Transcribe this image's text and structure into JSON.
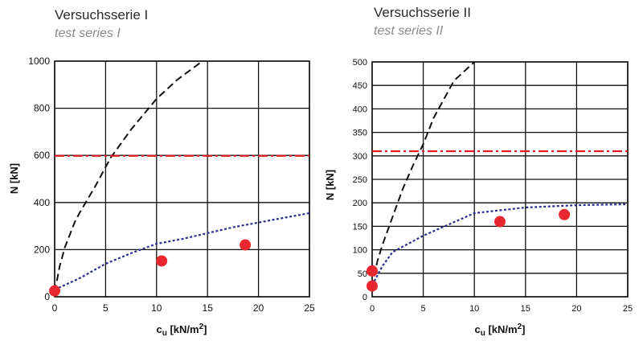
{
  "chart_data": [
    {
      "type": "line",
      "title": "Versuchsserie I",
      "subtitle": "test series I",
      "xlabel": "cu [kN/m2]",
      "ylabel": "N [kN]",
      "xlim": [
        0,
        25
      ],
      "ylim": [
        0,
        1000
      ],
      "xticks": [
        0,
        5,
        10,
        15,
        20,
        25
      ],
      "yticks": [
        0,
        200,
        400,
        600,
        800,
        1000
      ],
      "grid": true,
      "series": [
        {
          "style": "dashed-black",
          "x": [
            0,
            0.5,
            1,
            2,
            2.5,
            4,
            5.5,
            7.5,
            10,
            12,
            14.5
          ],
          "y": [
            20,
            130,
            210,
            320,
            360,
            470,
            590,
            710,
            840,
            920,
            1000
          ]
        },
        {
          "style": "dotted-blue",
          "x": [
            0,
            2.5,
            5,
            7.5,
            10,
            12.5,
            15,
            17.5,
            20,
            22.5,
            25
          ],
          "y": [
            30,
            80,
            140,
            185,
            225,
            245,
            270,
            295,
            315,
            335,
            355
          ]
        },
        {
          "style": "dashdot-red",
          "x": [
            0,
            25
          ],
          "y": [
            598,
            598
          ]
        },
        {
          "style": "marker-red",
          "x": [
            0,
            10.5,
            18.7
          ],
          "y": [
            25,
            152,
            220
          ]
        }
      ]
    },
    {
      "type": "line",
      "title": "Versuchsserie II",
      "subtitle": "test series II",
      "xlabel": "cu [kN/m2]",
      "ylabel": "N [kN]",
      "xlim": [
        0,
        25
      ],
      "ylim": [
        0,
        500
      ],
      "xticks": [
        0,
        5,
        10,
        15,
        20,
        25
      ],
      "yticks": [
        0,
        50,
        100,
        150,
        200,
        250,
        300,
        350,
        400,
        450,
        500
      ],
      "grid": true,
      "series": [
        {
          "style": "dashed-black",
          "x": [
            0,
            0.5,
            1,
            2,
            3,
            4,
            5,
            6,
            8,
            10
          ],
          "y": [
            20,
            75,
            110,
            170,
            230,
            280,
            325,
            380,
            460,
            500
          ]
        },
        {
          "style": "dotted-blue",
          "x": [
            0,
            0.5,
            1,
            2,
            5,
            10,
            15,
            20,
            25
          ],
          "y": [
            25,
            45,
            65,
            95,
            130,
            178,
            190,
            195,
            197
          ]
        },
        {
          "style": "dashdot-red",
          "x": [
            0,
            25
          ],
          "y": [
            310,
            310
          ]
        },
        {
          "style": "marker-red",
          "x": [
            0,
            0,
            12.5,
            18.8
          ],
          "y": [
            55,
            23,
            160,
            175
          ]
        }
      ]
    }
  ],
  "axis_text": {
    "left": {
      "ylabel": "N [kN]",
      "xlabel_base": "c",
      "xlabel_sub": "u",
      "xlabel_unit": " [kN/m",
      "xlabel_sup": "2",
      "xlabel_close": "]"
    },
    "right": {
      "ylabel": "N [kN]",
      "xlabel_base": "c",
      "xlabel_sub": "u",
      "xlabel_unit": " [kN/m",
      "xlabel_sup": "2",
      "xlabel_close": "]"
    }
  },
  "colors": {
    "grid": "#111111",
    "dashed": "#111111",
    "dotted": "#2b2e8c",
    "dashdot": "#e01b24",
    "marker": "#e8272e"
  }
}
